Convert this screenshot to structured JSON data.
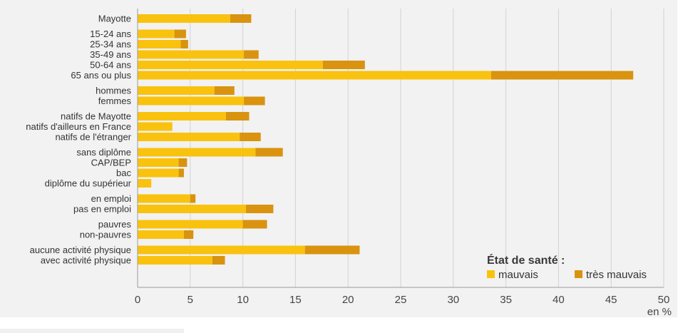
{
  "chart_data": {
    "type": "bar",
    "orientation": "horizontal",
    "stacked": true,
    "categories": [
      "Mayotte",
      "15-24 ans",
      "25-34 ans",
      "35-49 ans",
      "50-64 ans",
      "65 ans ou plus",
      "hommes",
      "femmes",
      "natifs de Mayotte",
      "natifs d'ailleurs en France",
      "natifs de l'étranger",
      "sans diplôme",
      "CAP/BEP",
      "bac",
      "diplôme du supérieur",
      "en emploi",
      "pas en emploi",
      "pauvres",
      "non-pauvres",
      "aucune activité physique",
      "avec activité physique"
    ],
    "groups": [
      [
        0
      ],
      [
        1,
        2,
        3,
        4,
        5
      ],
      [
        6,
        7
      ],
      [
        8,
        9,
        10
      ],
      [
        11,
        12,
        13,
        14
      ],
      [
        15,
        16
      ],
      [
        17,
        18
      ],
      [
        19,
        20
      ]
    ],
    "series": [
      {
        "name": "mauvais",
        "color": "#f9c20f",
        "values": [
          8.8,
          3.5,
          4.1,
          10.1,
          17.6,
          33.6,
          7.3,
          10.1,
          8.4,
          3.3,
          9.7,
          11.2,
          3.9,
          3.9,
          1.3,
          5.0,
          10.3,
          10.0,
          4.4,
          15.9,
          7.1
        ]
      },
      {
        "name": "très mauvais",
        "color": "#d9930e",
        "values": [
          2.0,
          1.1,
          0.7,
          1.4,
          4.0,
          13.5,
          1.9,
          2.0,
          2.2,
          0.0,
          2.0,
          2.6,
          0.8,
          0.5,
          0.0,
          0.5,
          2.6,
          2.3,
          0.9,
          5.2,
          1.2
        ]
      }
    ],
    "xlim": [
      0,
      50
    ],
    "xticks": [
      0,
      5,
      10,
      15,
      20,
      25,
      30,
      35,
      40,
      45,
      50
    ],
    "xunit": "en %",
    "grid": "vertical",
    "legend": {
      "title": "État de santé :",
      "position": "bottom-right"
    }
  }
}
